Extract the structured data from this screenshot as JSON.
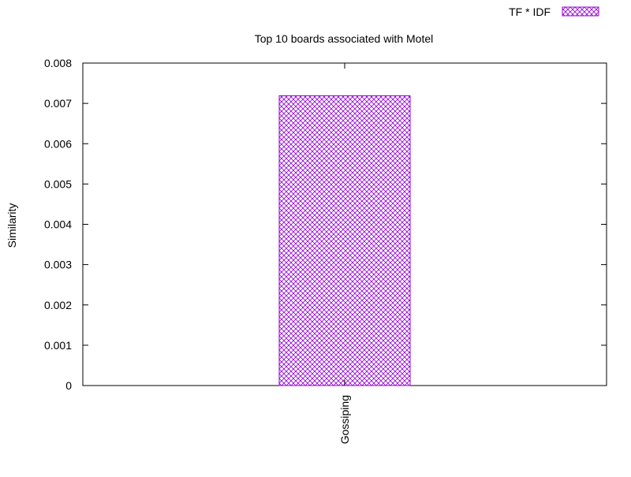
{
  "chart_data": {
    "type": "bar",
    "title": "Top 10 boards associated with Motel",
    "xlabel": "",
    "ylabel": "Similarity",
    "categories": [
      "Gossiping"
    ],
    "series": [
      {
        "name": "TF * IDF",
        "values": [
          0.00719
        ],
        "color": "#9400d3",
        "pattern": "crosshatch"
      }
    ],
    "ylim": [
      0,
      0.008
    ],
    "yticks": [
      "0",
      "0.001",
      "0.002",
      "0.003",
      "0.004",
      "0.005",
      "0.006",
      "0.007",
      "0.008"
    ],
    "grid": false,
    "legend_position": "top-right"
  }
}
